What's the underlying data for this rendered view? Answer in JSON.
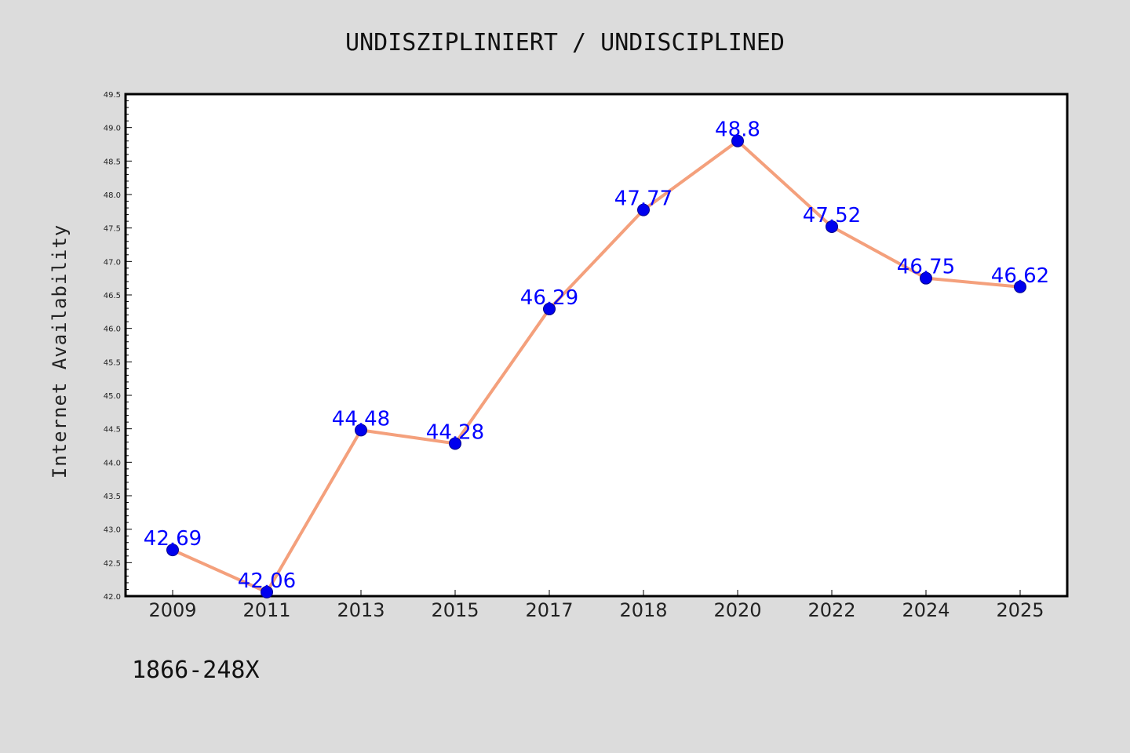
{
  "chart_data": {
    "type": "line",
    "title": "UNDISZIPLINIERT / UNDISCIPLINED",
    "ylabel": "Internet Availability",
    "xlabel": "",
    "categories": [
      "2009",
      "2011",
      "2013",
      "2015",
      "2017",
      "2018",
      "2020",
      "2022",
      "2024",
      "2025"
    ],
    "series": [
      {
        "values": [
          42.69,
          42.06,
          44.48,
          44.28,
          46.29,
          47.77,
          48.8,
          47.52,
          46.75,
          46.62
        ],
        "labels": [
          "42.69",
          "42.06",
          "44.48",
          "44.28",
          "46.29",
          "47.77",
          "48.8",
          "47.52",
          "46.75",
          "46.62"
        ],
        "line_color": "#f4a07c",
        "marker_color": "#0000ee"
      }
    ],
    "ylim": [
      42.0,
      49.5
    ],
    "yticks": [
      "42.0",
      "42.5",
      "43.0",
      "43.5",
      "44.0",
      "44.5",
      "45.0",
      "45.5",
      "46.0",
      "46.5",
      "47.0",
      "47.5",
      "48.0",
      "48.5",
      "49.0",
      "49.5"
    ],
    "grid": false,
    "legend": "none",
    "footer": "1866-248X"
  }
}
